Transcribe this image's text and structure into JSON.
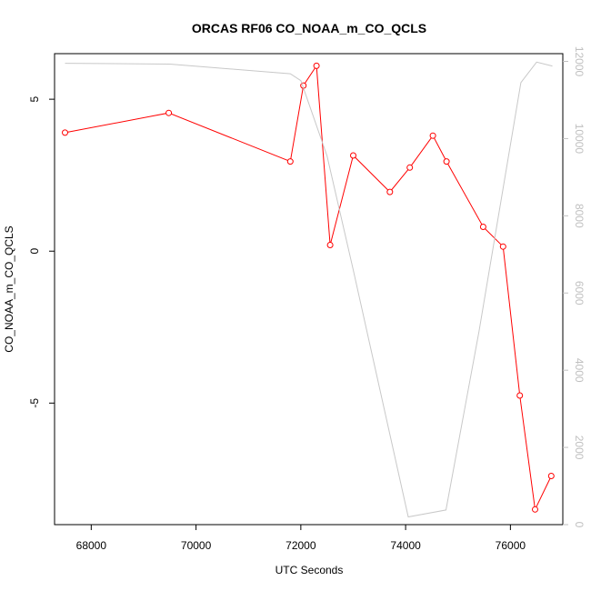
{
  "chart_data": {
    "type": "line",
    "title": "ORCAS RF06 CO_NOAA_m_CO_QCLS",
    "xlabel": "UTC Seconds",
    "ylabel": "CO_NOAA_m_CO_QCLS",
    "xlim": [
      67300,
      77000
    ],
    "ylim": [
      -9.0,
      6.5
    ],
    "y2lim": [
      0,
      12200
    ],
    "x_ticks": [
      68000,
      70000,
      72000,
      74000,
      76000
    ],
    "y_ticks": [
      -5,
      0,
      5
    ],
    "y2_ticks": [
      0,
      2000,
      4000,
      6000,
      8000,
      10000,
      12000
    ],
    "grid": false,
    "series": [
      {
        "color": "#ff0000",
        "axis": "left",
        "marker": "open-circle",
        "x": [
          67500,
          69480,
          71800,
          72050,
          72300,
          72560,
          73000,
          73700,
          74080,
          74520,
          74780,
          75480,
          75860,
          76180,
          76470,
          76780
        ],
        "y": [
          3.9,
          4.55,
          2.95,
          5.45,
          6.1,
          0.2,
          3.15,
          1.95,
          2.75,
          3.8,
          2.95,
          0.8,
          0.15,
          -4.75,
          -8.5,
          -7.4
        ]
      },
      {
        "color": "#c8c8c8",
        "axis": "right",
        "marker": "none",
        "x": [
          67500,
          69500,
          71800,
          72000,
          72500,
          73000,
          74050,
          74770,
          75400,
          76200,
          76500,
          76800
        ],
        "y": [
          11950,
          11930,
          11680,
          11500,
          9550,
          6600,
          200,
          380,
          5000,
          11450,
          11980,
          11880
        ]
      }
    ]
  }
}
